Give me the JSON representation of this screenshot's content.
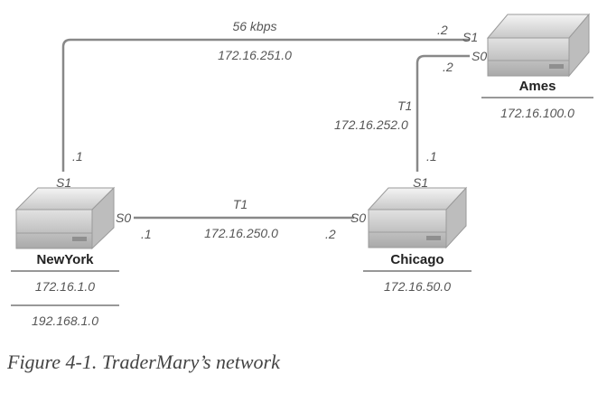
{
  "links": {
    "ny_ames": {
      "speed": "56 kbps",
      "network": "172.16.251.0",
      "ny_interface": "S1",
      "ny_host": ".1",
      "ames_interface": "S1",
      "ames_host": ".2"
    },
    "chicago_ames": {
      "type": "T1",
      "network": "172.16.252.0",
      "chicago_interface": "S1",
      "chicago_host": ".1",
      "ames_interface": "S0",
      "ames_host": ".2"
    },
    "ny_chicago": {
      "type": "T1",
      "network": "172.16.250.0",
      "ny_interface": "S0",
      "ny_host": ".1",
      "chicago_interface": "S0",
      "chicago_host": ".2"
    }
  },
  "routers": {
    "newyork": {
      "name": "NewYork",
      "networks": [
        "172.16.1.0",
        "192.168.1.0"
      ]
    },
    "chicago": {
      "name": "Chicago",
      "networks": [
        "172.16.50.0"
      ]
    },
    "ames": {
      "name": "Ames",
      "networks": [
        "172.16.100.0"
      ]
    }
  },
  "caption": "Figure 4-1. TraderMary’s network"
}
